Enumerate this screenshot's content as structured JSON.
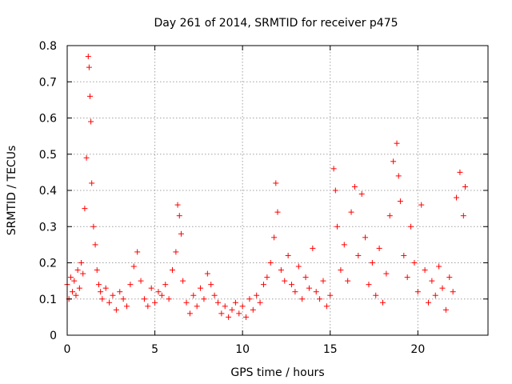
{
  "chart_data": {
    "type": "scatter",
    "title": "Day 261 of 2014, SRMTID for receiver p475",
    "xlabel": "GPS time / hours",
    "ylabel": "SRMTID / TECUs",
    "xlim": [
      0,
      24
    ],
    "ylim": [
      0,
      0.8
    ],
    "x_ticks": [
      0,
      5,
      10,
      15,
      20
    ],
    "x_tick_labels": [
      "0",
      "5",
      "10",
      "15",
      "20"
    ],
    "y_ticks": [
      0,
      0.1,
      0.2,
      0.3,
      0.4,
      0.5,
      0.6,
      0.7,
      0.8
    ],
    "y_tick_labels": [
      "0",
      "0.1",
      "0.2",
      "0.3",
      "0.4",
      "0.5",
      "0.6",
      "0.7",
      "0.8"
    ],
    "grid": true,
    "marker": "+",
    "color": "#ff0000",
    "series": [
      {
        "name": "SRMTID",
        "x": [
          0.0,
          0.1,
          0.2,
          0.3,
          0.4,
          0.5,
          0.6,
          0.7,
          0.8,
          0.9,
          1.0,
          1.1,
          1.2,
          1.25,
          1.3,
          1.35,
          1.4,
          1.5,
          1.6,
          1.7,
          1.8,
          1.9,
          2.0,
          2.2,
          2.4,
          2.6,
          2.8,
          3.0,
          3.2,
          3.4,
          3.6,
          3.8,
          4.0,
          4.2,
          4.4,
          4.6,
          4.8,
          5.0,
          5.2,
          5.4,
          5.6,
          5.8,
          6.0,
          6.2,
          6.3,
          6.4,
          6.5,
          6.6,
          6.8,
          7.0,
          7.2,
          7.4,
          7.6,
          7.8,
          8.0,
          8.2,
          8.4,
          8.6,
          8.8,
          9.0,
          9.2,
          9.4,
          9.6,
          9.8,
          10.0,
          10.2,
          10.4,
          10.6,
          10.8,
          11.0,
          11.2,
          11.4,
          11.6,
          11.8,
          11.9,
          12.0,
          12.2,
          12.4,
          12.6,
          12.8,
          13.0,
          13.2,
          13.4,
          13.6,
          13.8,
          14.0,
          14.2,
          14.4,
          14.6,
          14.8,
          15.0,
          15.2,
          15.3,
          15.4,
          15.6,
          15.8,
          16.0,
          16.2,
          16.4,
          16.6,
          16.8,
          17.0,
          17.2,
          17.4,
          17.6,
          17.8,
          18.0,
          18.2,
          18.4,
          18.6,
          18.8,
          18.9,
          19.0,
          19.2,
          19.4,
          19.6,
          19.8,
          20.0,
          20.2,
          20.4,
          20.6,
          20.8,
          21.0,
          21.2,
          21.4,
          21.6,
          21.8,
          22.0,
          22.2,
          22.4,
          22.6,
          22.7
        ],
        "y": [
          0.14,
          0.1,
          0.16,
          0.12,
          0.15,
          0.11,
          0.18,
          0.13,
          0.2,
          0.17,
          0.35,
          0.49,
          0.77,
          0.74,
          0.66,
          0.59,
          0.42,
          0.3,
          0.25,
          0.18,
          0.14,
          0.12,
          0.1,
          0.13,
          0.09,
          0.11,
          0.07,
          0.12,
          0.1,
          0.08,
          0.14,
          0.19,
          0.23,
          0.15,
          0.1,
          0.08,
          0.13,
          0.09,
          0.12,
          0.11,
          0.14,
          0.1,
          0.18,
          0.23,
          0.36,
          0.33,
          0.28,
          0.15,
          0.09,
          0.06,
          0.11,
          0.08,
          0.13,
          0.1,
          0.17,
          0.14,
          0.11,
          0.09,
          0.06,
          0.08,
          0.05,
          0.07,
          0.09,
          0.06,
          0.08,
          0.05,
          0.1,
          0.07,
          0.11,
          0.09,
          0.14,
          0.16,
          0.2,
          0.27,
          0.42,
          0.34,
          0.18,
          0.15,
          0.22,
          0.14,
          0.12,
          0.19,
          0.1,
          0.16,
          0.13,
          0.24,
          0.12,
          0.1,
          0.15,
          0.08,
          0.11,
          0.46,
          0.4,
          0.3,
          0.18,
          0.25,
          0.15,
          0.34,
          0.41,
          0.22,
          0.39,
          0.27,
          0.14,
          0.2,
          0.11,
          0.24,
          0.09,
          0.17,
          0.33,
          0.48,
          0.53,
          0.44,
          0.37,
          0.22,
          0.16,
          0.3,
          0.2,
          0.12,
          0.36,
          0.18,
          0.09,
          0.15,
          0.11,
          0.19,
          0.13,
          0.07,
          0.16,
          0.12,
          0.38,
          0.45,
          0.33,
          0.41
        ]
      }
    ]
  }
}
